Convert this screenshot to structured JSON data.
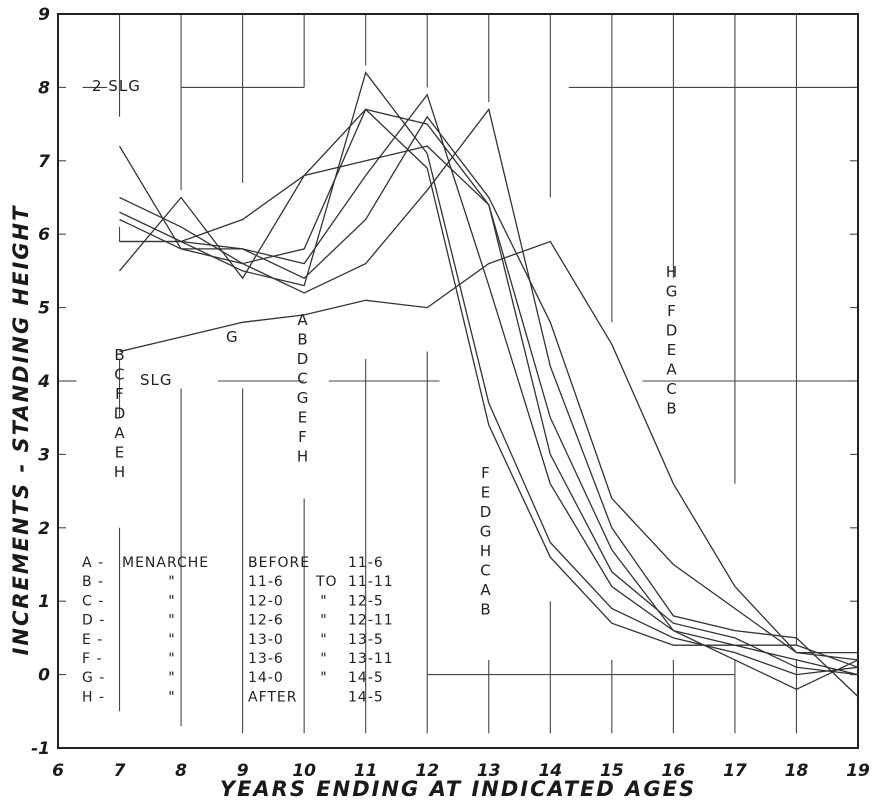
{
  "chart_data": {
    "type": "line",
    "xlabel": "YEARS ENDING AT INDICATED AGES",
    "ylabel": "INCREMENTS - STANDING HEIGHT",
    "xlim": [
      6,
      19
    ],
    "ylim": [
      -1,
      9
    ],
    "x_ticks": [
      "6",
      "7",
      "8",
      "9",
      "10",
      "11",
      "12",
      "13",
      "14",
      "15",
      "16",
      "17",
      "18",
      "19"
    ],
    "y_ticks": [
      "-1",
      "0",
      "1",
      "2",
      "3",
      "4",
      "5",
      "6",
      "7",
      "8",
      "9"
    ],
    "x": [
      7,
      8,
      9,
      10,
      11,
      12,
      13,
      14,
      15,
      16,
      17,
      18,
      19
    ],
    "series": [
      {
        "name": "A",
        "values": [
          6.5,
          6.1,
          5.6,
          5.8,
          7.7,
          6.9,
          3.4,
          1.6,
          0.7,
          0.4,
          0.4,
          0.2,
          0.0
        ]
      },
      {
        "name": "B",
        "values": [
          5.9,
          5.9,
          5.5,
          5.3,
          8.2,
          7.1,
          3.7,
          1.8,
          0.9,
          0.5,
          0.3,
          0.0,
          0.1
        ]
      },
      {
        "name": "C",
        "values": [
          6.3,
          5.9,
          5.8,
          5.6,
          6.8,
          7.9,
          5.3,
          2.6,
          1.2,
          0.6,
          0.2,
          -0.2,
          0.2
        ]
      },
      {
        "name": "D",
        "values": [
          5.5,
          6.5,
          5.4,
          6.8,
          7.7,
          7.5,
          6.4,
          3.0,
          1.4,
          0.7,
          0.5,
          0.1,
          0.0
        ]
      },
      {
        "name": "E",
        "values": [
          5.9,
          5.9,
          6.2,
          6.8,
          7.0,
          7.2,
          6.4,
          3.5,
          1.7,
          0.6,
          0.4,
          0.4,
          0.1
        ]
      },
      {
        "name": "F",
        "values": [
          6.2,
          5.8,
          5.6,
          5.2,
          5.6,
          6.6,
          7.7,
          4.2,
          2.0,
          0.8,
          0.6,
          0.5,
          -0.3
        ]
      },
      {
        "name": "G",
        "values": [
          7.2,
          5.8,
          5.8,
          5.4,
          6.2,
          7.6,
          6.5,
          4.8,
          2.4,
          1.5,
          0.9,
          0.3,
          0.2
        ]
      },
      {
        "name": "H",
        "values": [
          4.4,
          4.6,
          4.8,
          4.9,
          5.1,
          5.0,
          5.6,
          5.9,
          4.5,
          2.6,
          1.2,
          0.3,
          0.3
        ]
      }
    ],
    "legend_placement": "bottom-left",
    "grid": "partial"
  },
  "annotations": {
    "slg2": "2 SLG",
    "slg": "SLG",
    "g_label": "G",
    "stack7": [
      "B",
      "C",
      "F",
      "D",
      "A",
      "E",
      "H"
    ],
    "stack10": [
      "A",
      "B",
      "D",
      "C",
      "G",
      "E",
      "F",
      "H"
    ],
    "stack13": [
      "F",
      "E",
      "D",
      "G",
      "H",
      "C",
      "A",
      "B"
    ],
    "stack16": [
      "H",
      "G",
      "F",
      "D",
      "E",
      "A",
      "C",
      "B"
    ]
  },
  "legend_table": {
    "rows": [
      {
        "letter": "A -",
        "col2": "MENARCHE",
        "col3": "BEFORE",
        "col4": "",
        "col5": "11-6"
      },
      {
        "letter": "B -",
        "col2": "\"",
        "col3": "11-6",
        "col4": "TO",
        "col5": "11-11"
      },
      {
        "letter": "C -",
        "col2": "\"",
        "col3": "12-0",
        "col4": "\"",
        "col5": "12-5"
      },
      {
        "letter": "D -",
        "col2": "\"",
        "col3": "12-6",
        "col4": "\"",
        "col5": "12-11"
      },
      {
        "letter": "E -",
        "col2": "\"",
        "col3": "13-0",
        "col4": "\"",
        "col5": "13-5"
      },
      {
        "letter": "F -",
        "col2": "\"",
        "col3": "13-6",
        "col4": "\"",
        "col5": "13-11"
      },
      {
        "letter": "G -",
        "col2": "\"",
        "col3": "14-0",
        "col4": "\"",
        "col5": "14-5"
      },
      {
        "letter": "H -",
        "col2": "\"",
        "col3": "AFTER",
        "col4": "",
        "col5": "14-5"
      }
    ]
  }
}
